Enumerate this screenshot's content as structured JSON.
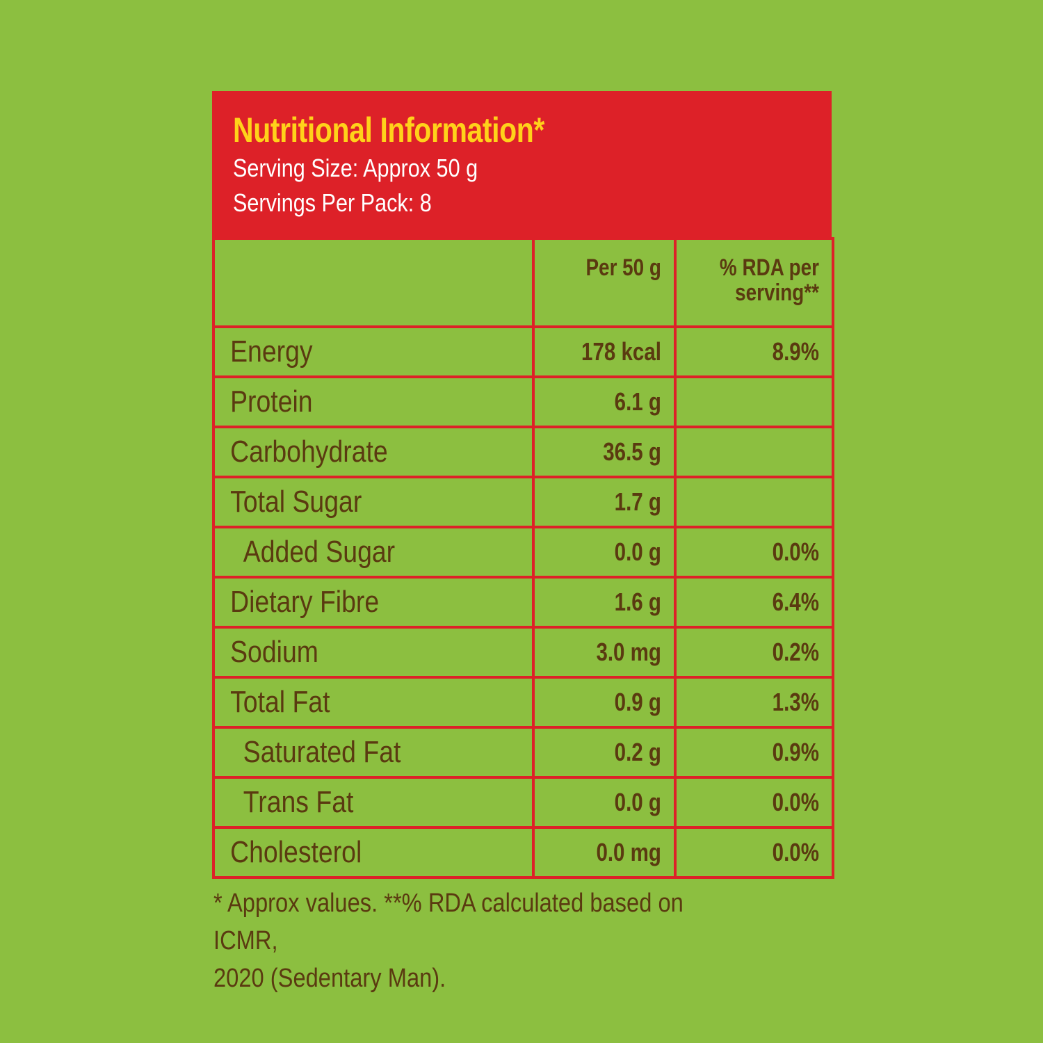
{
  "header": {
    "title": "Nutritional Information*",
    "serving_size": "Serving Size: Approx 50 g",
    "servings_per_pack": "Servings Per Pack: 8"
  },
  "columns": {
    "per": "Per 50 g",
    "rda_line1": "% RDA per",
    "rda_line2": "serving**"
  },
  "rows": [
    {
      "label": "Energy",
      "per": "178 kcal",
      "rda": "8.9%"
    },
    {
      "label": "Protein",
      "per": "6.1 g",
      "rda": ""
    },
    {
      "label": "Carbohydrate",
      "per": "36.5 g",
      "rda": ""
    },
    {
      "label": "Total Sugar",
      "per": "1.7 g",
      "rda": ""
    },
    {
      "label": "Added Sugar",
      "per": "0.0 g",
      "rda": "0.0%"
    },
    {
      "label": "Dietary Fibre",
      "per": "1.6 g",
      "rda": "6.4%"
    },
    {
      "label": "Sodium",
      "per": "3.0 mg",
      "rda": "0.2%"
    },
    {
      "label": "Total Fat",
      "per": "0.9 g",
      "rda": "1.3%"
    },
    {
      "label": "Saturated Fat",
      "per": "0.2 g",
      "rda": "0.9%"
    },
    {
      "label": "Trans Fat",
      "per": "0.0 g",
      "rda": "0.0%"
    },
    {
      "label": "Cholesterol",
      "per": "0.0 mg",
      "rda": "0.0%"
    }
  ],
  "footnote": {
    "line1": "* Approx values. **% RDA calculated based on ICMR,",
    "line2": "2020 (Sedentary Man)."
  },
  "colors": {
    "background": "#8cbf40",
    "header_red": "#dd2128",
    "title_yellow": "#ffd21a",
    "text_brown": "#5a3a10"
  }
}
